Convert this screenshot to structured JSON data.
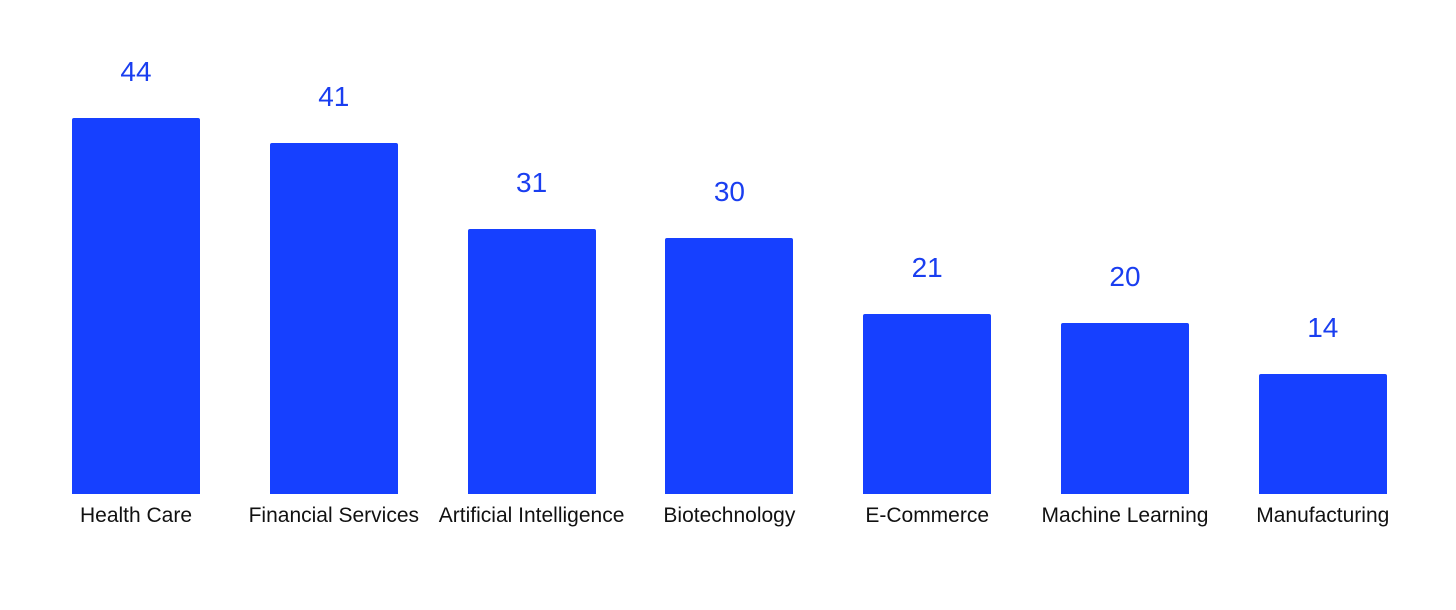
{
  "chart_data": {
    "type": "bar",
    "categories": [
      "Health Care",
      "Financial Services",
      "Artificial Intelligence",
      "Biotechnology",
      "E-Commerce",
      "Machine Learning",
      "Manufacturing"
    ],
    "values": [
      44,
      41,
      31,
      30,
      21,
      20,
      14
    ],
    "color": "#1640ff"
  }
}
